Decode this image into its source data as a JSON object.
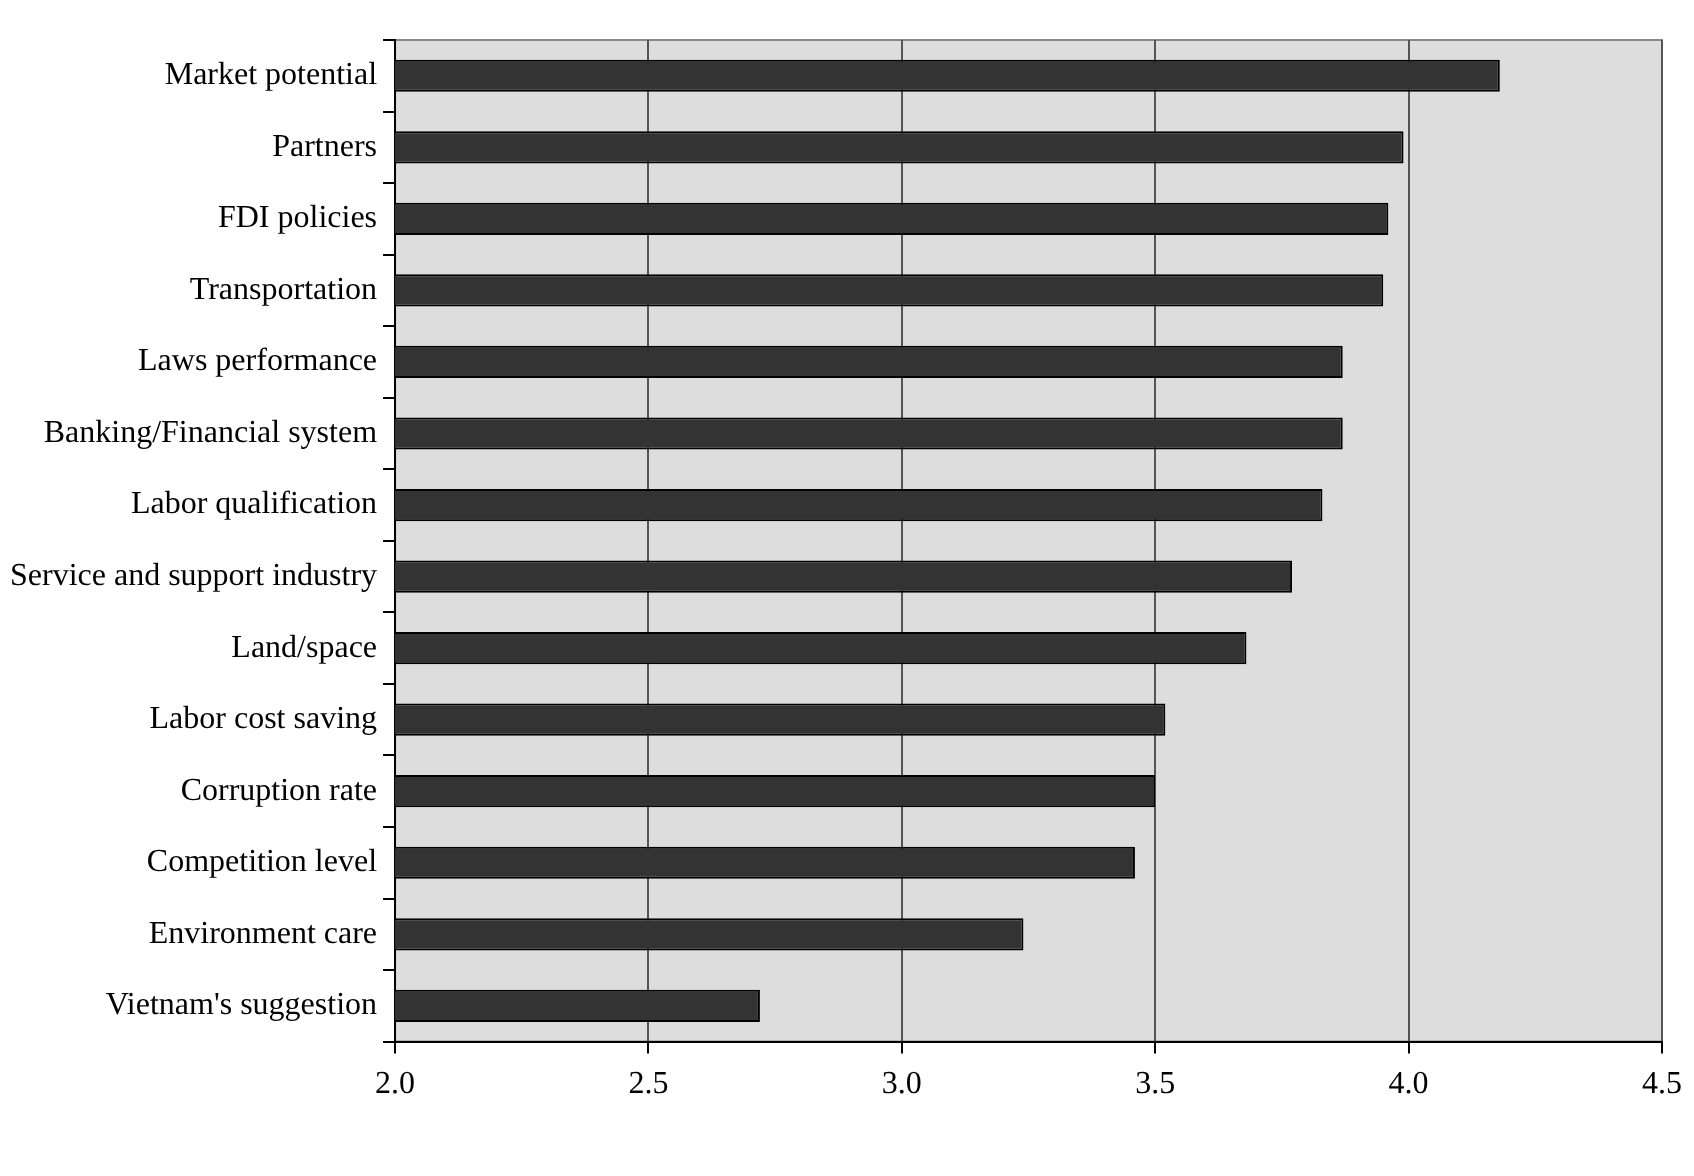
{
  "chart_data": {
    "type": "bar",
    "orientation": "horizontal",
    "categories": [
      "Market potential",
      "Partners",
      "FDI policies",
      "Transportation",
      "Laws performance",
      "Banking/Financial system",
      "Labor qualification",
      "Service and support industry",
      "Land/space",
      "Labor cost saving",
      "Corruption rate",
      "Competition level",
      "Environment care",
      "Vietnam's suggestion"
    ],
    "values": [
      4.18,
      3.99,
      3.96,
      3.95,
      3.87,
      3.87,
      3.83,
      3.77,
      3.68,
      3.52,
      3.5,
      3.46,
      3.24,
      2.72
    ],
    "color": "#333333",
    "xlim": [
      2.0,
      4.5
    ],
    "xticks": [
      {
        "value": 2.0,
        "label": "2.0"
      },
      {
        "value": 2.5,
        "label": "2.5"
      },
      {
        "value": 3.0,
        "label": "3.0"
      },
      {
        "value": 3.5,
        "label": "3.5"
      },
      {
        "value": 4.0,
        "label": "4.0"
      },
      {
        "value": 4.5,
        "label": "4.5"
      }
    ],
    "grid": "x",
    "legend": false
  }
}
